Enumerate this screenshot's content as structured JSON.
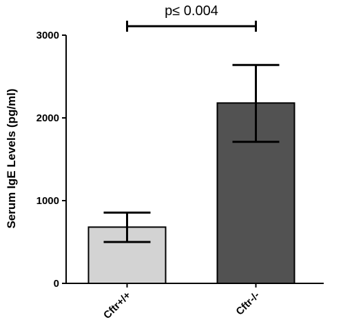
{
  "chart_data": {
    "type": "bar",
    "categories": [
      "Cftr+/+",
      "Cftr-/-"
    ],
    "values": [
      680,
      2180
    ],
    "error_low": [
      500,
      1710
    ],
    "error_high": [
      855,
      2640
    ],
    "bar_colors": [
      "#d3d3d3",
      "#525252"
    ],
    "title": "",
    "xlabel": "",
    "ylabel": "Serum IgE Levels (pg/ml)",
    "ylim": [
      0,
      3000
    ],
    "yticks": [
      "0",
      "1000",
      "2000",
      "3000"
    ],
    "grid": false,
    "annotation": {
      "text": "p≤ 0.004",
      "between": [
        0,
        1
      ]
    }
  }
}
